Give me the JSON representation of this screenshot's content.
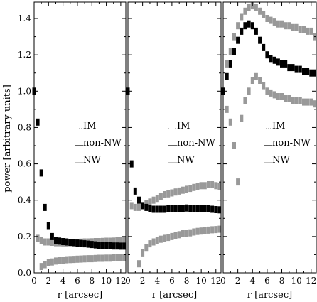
{
  "chart_data": [
    {
      "type": "scatter",
      "panel": 1,
      "xlabel": "r [arcsec]",
      "ylabel": "power [arbitrary units]",
      "xlim": [
        0,
        12.7
      ],
      "ylim": [
        0.0,
        1.49
      ],
      "xticks": [
        0,
        2,
        4,
        6,
        8,
        10,
        12
      ],
      "yticks": [
        0.0,
        0.2,
        0.4,
        0.6,
        0.8,
        1.0,
        1.2,
        1.4
      ],
      "legend": [
        "IM",
        "non-NW",
        "NW"
      ],
      "legend_position": "middle-right",
      "grid": false,
      "series": [
        {
          "name": "non-NW",
          "color": "#000000",
          "x": [
            0.0,
            0.5,
            1.0,
            1.5,
            2.0,
            2.5,
            3.0,
            3.5,
            4.0,
            4.5,
            5.0,
            5.5,
            6.0,
            6.5,
            7.0,
            7.5,
            8.0,
            8.5,
            9.0,
            9.5,
            10.0,
            10.5,
            11.0,
            11.5,
            12.0,
            12.5
          ],
          "y": [
            1.0,
            0.83,
            0.55,
            0.36,
            0.26,
            0.2,
            0.18,
            0.175,
            0.172,
            0.17,
            0.168,
            0.166,
            0.164,
            0.162,
            0.16,
            0.158,
            0.156,
            0.154,
            0.152,
            0.15,
            0.15,
            0.149,
            0.148,
            0.148,
            0.147,
            0.147
          ]
        },
        {
          "name": "IM",
          "color": "#999999",
          "x": [
            0.5,
            1.0,
            1.5,
            2.0,
            2.5,
            3.0,
            3.5,
            4.0,
            4.5,
            5.0,
            5.5,
            6.0,
            6.5,
            7.0,
            7.5,
            8.0,
            8.5,
            9.0,
            9.5,
            10.0,
            10.5,
            11.0,
            11.5,
            12.0,
            12.5
          ],
          "y": [
            0.19,
            0.18,
            0.17,
            0.17,
            0.168,
            0.166,
            0.166,
            0.165,
            0.165,
            0.166,
            0.167,
            0.168,
            0.169,
            0.17,
            0.17,
            0.171,
            0.172,
            0.172,
            0.173,
            0.174,
            0.174,
            0.175,
            0.176,
            0.176,
            0.177
          ]
        },
        {
          "name": "NW",
          "color": "#999999",
          "x": [
            1.0,
            1.5,
            2.0,
            2.5,
            3.0,
            3.5,
            4.0,
            4.5,
            5.0,
            5.5,
            6.0,
            6.5,
            7.0,
            7.5,
            8.0,
            8.5,
            9.0,
            9.5,
            10.0,
            10.5,
            11.0,
            11.5,
            12.0,
            12.5
          ],
          "y": [
            0.035,
            0.045,
            0.055,
            0.06,
            0.065,
            0.068,
            0.07,
            0.072,
            0.073,
            0.074,
            0.075,
            0.076,
            0.077,
            0.078,
            0.078,
            0.079,
            0.08,
            0.08,
            0.081,
            0.081,
            0.082,
            0.082,
            0.082,
            0.083
          ]
        }
      ]
    },
    {
      "type": "scatter",
      "panel": 2,
      "xlabel": "r [arcsec]",
      "xlim": [
        0,
        12.7
      ],
      "ylim": [
        0.0,
        1.49
      ],
      "xticks": [
        0,
        2,
        4,
        6,
        8,
        10,
        12
      ],
      "legend": [
        "IM",
        "non-NW",
        "NW"
      ],
      "legend_position": "middle-right",
      "grid": false,
      "series": [
        {
          "name": "non-NW",
          "color": "#000000",
          "x": [
            0.0,
            0.5,
            1.0,
            1.5,
            2.0,
            2.5,
            3.0,
            3.5,
            4.0,
            4.5,
            5.0,
            5.5,
            6.0,
            6.5,
            7.0,
            7.5,
            8.0,
            8.5,
            9.0,
            9.5,
            10.0,
            10.5,
            11.0,
            11.5,
            12.0,
            12.5
          ],
          "y": [
            1.0,
            0.6,
            0.45,
            0.4,
            0.37,
            0.36,
            0.355,
            0.35,
            0.35,
            0.35,
            0.35,
            0.352,
            0.353,
            0.355,
            0.355,
            0.356,
            0.357,
            0.356,
            0.355,
            0.354,
            0.355,
            0.356,
            0.355,
            0.35,
            0.348,
            0.347
          ]
        },
        {
          "name": "IM",
          "color": "#999999",
          "x": [
            0.5,
            1.0,
            1.5,
            2.0,
            2.5,
            3.0,
            3.5,
            4.0,
            4.5,
            5.0,
            5.5,
            6.0,
            6.5,
            7.0,
            7.5,
            8.0,
            8.5,
            9.0,
            9.5,
            10.0,
            10.5,
            11.0,
            11.5,
            12.0,
            12.5
          ],
          "y": [
            0.37,
            0.36,
            0.36,
            0.37,
            0.38,
            0.39,
            0.4,
            0.41,
            0.42,
            0.43,
            0.435,
            0.44,
            0.445,
            0.45,
            0.455,
            0.46,
            0.465,
            0.47,
            0.475,
            0.48,
            0.48,
            0.485,
            0.485,
            0.48,
            0.475
          ]
        },
        {
          "name": "NW",
          "color": "#999999",
          "x": [
            1.5,
            2.0,
            2.5,
            3.0,
            3.5,
            4.0,
            4.5,
            5.0,
            5.5,
            6.0,
            6.5,
            7.0,
            7.5,
            8.0,
            8.5,
            9.0,
            9.5,
            10.0,
            10.5,
            11.0,
            11.5,
            12.0,
            12.5
          ],
          "y": [
            0.05,
            0.11,
            0.14,
            0.16,
            0.17,
            0.18,
            0.185,
            0.19,
            0.195,
            0.2,
            0.205,
            0.21,
            0.215,
            0.218,
            0.22,
            0.225,
            0.228,
            0.23,
            0.232,
            0.235,
            0.237,
            0.238,
            0.24
          ]
        }
      ]
    },
    {
      "type": "scatter",
      "panel": 3,
      "xlabel": "r [arcsec]",
      "xlim": [
        0,
        12.7
      ],
      "ylim": [
        0.0,
        1.49
      ],
      "xticks": [
        0,
        2,
        4,
        6,
        8,
        10,
        12
      ],
      "legend": [
        "IM",
        "non-NW",
        "NW"
      ],
      "legend_position": "middle-right",
      "grid": false,
      "series": [
        {
          "name": "non-NW",
          "color": "#000000",
          "x": [
            0.0,
            0.5,
            1.0,
            1.5,
            2.0,
            2.5,
            3.0,
            3.5,
            4.0,
            4.5,
            5.0,
            5.5,
            6.0,
            6.5,
            7.0,
            7.5,
            8.0,
            8.5,
            9.0,
            9.5,
            10.0,
            10.5,
            11.0,
            11.5,
            12.0,
            12.5
          ],
          "y": [
            1.0,
            1.08,
            1.15,
            1.22,
            1.28,
            1.33,
            1.36,
            1.37,
            1.36,
            1.33,
            1.28,
            1.24,
            1.2,
            1.18,
            1.17,
            1.16,
            1.15,
            1.15,
            1.13,
            1.13,
            1.12,
            1.12,
            1.11,
            1.11,
            1.1,
            1.1
          ]
        },
        {
          "name": "IM",
          "color": "#999999",
          "x": [
            0.5,
            1.0,
            1.5,
            2.0,
            2.5,
            3.0,
            3.5,
            4.0,
            4.5,
            5.0,
            5.5,
            6.0,
            6.5,
            7.0,
            7.5,
            8.0,
            8.5,
            9.0,
            9.5,
            10.0,
            10.5,
            11.0,
            11.5,
            12.0,
            12.5
          ],
          "y": [
            1.15,
            1.22,
            1.3,
            1.36,
            1.41,
            1.44,
            1.46,
            1.47,
            1.46,
            1.44,
            1.42,
            1.4,
            1.39,
            1.38,
            1.37,
            1.37,
            1.36,
            1.36,
            1.35,
            1.35,
            1.34,
            1.34,
            1.33,
            1.33,
            1.3
          ]
        },
        {
          "name": "NW",
          "color": "#999999",
          "x": [
            0.5,
            1.0,
            1.5,
            2.0,
            2.5,
            3.0,
            3.5,
            4.0,
            4.5,
            5.0,
            5.5,
            6.0,
            6.5,
            7.0,
            7.5,
            8.0,
            8.5,
            9.0,
            9.5,
            10.0,
            10.5,
            11.0,
            11.5,
            12.0,
            12.5
          ],
          "y": [
            0.9,
            0.83,
            0.7,
            0.5,
            0.85,
            0.95,
            1.0,
            1.06,
            1.08,
            1.06,
            1.03,
            1.0,
            0.99,
            0.98,
            0.97,
            0.97,
            0.96,
            0.96,
            0.95,
            0.95,
            0.95,
            0.94,
            0.94,
            0.94,
            0.93
          ]
        }
      ]
    }
  ]
}
